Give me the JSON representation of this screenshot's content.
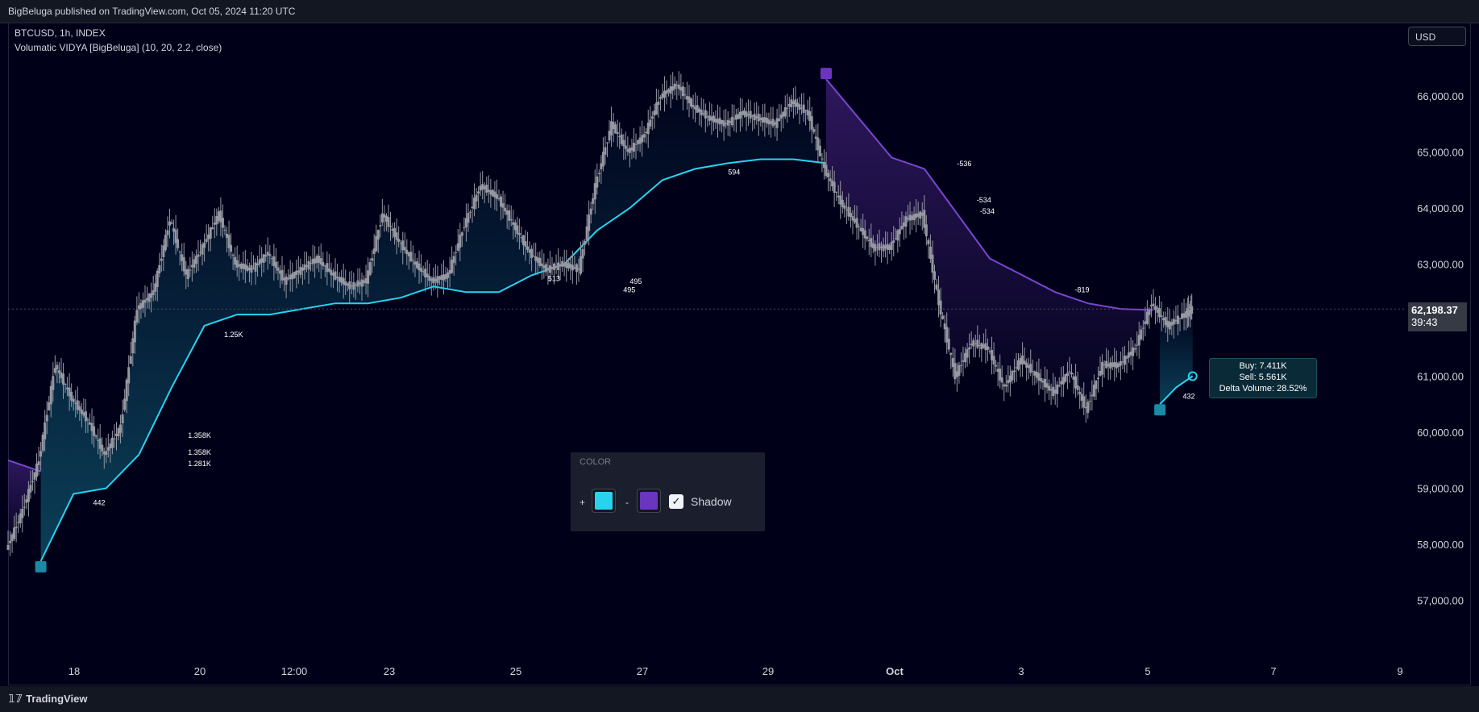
{
  "header": {
    "published": "BigBeluga published on TradingView.com, Oct 05, 2024 11:20 UTC"
  },
  "legend": {
    "symbol": "BTCUSD, 1h, INDEX",
    "indicator": "Volumatic VIDYA [BigBeluga] (10, 20, 2.2, close)"
  },
  "currency_button": "USD",
  "footer": {
    "brand": "TradingView"
  },
  "last_price": {
    "price": "62,198.37",
    "countdown": "39:43"
  },
  "info_box": {
    "buy": "Buy: 7.411K",
    "sell": "Sell: 5.561K",
    "delta": "Delta Volume: 28.52%"
  },
  "color_panel": {
    "title": "COLOR",
    "plus": "+",
    "minus": "-",
    "shadow_label": "Shadow",
    "shadow_checked": true,
    "bull_color": "#28d3f0",
    "bear_color": "#6b35c0",
    "check_glyph": "✓"
  },
  "colors": {
    "background": "#000119",
    "bull": "#28d3f0",
    "bear": "#7a45d0",
    "candle": "#9598a1"
  },
  "chart_data": {
    "type": "line",
    "title": "BTCUSD, 1h, INDEX",
    "x_ticks": [
      "18",
      "20",
      "12:00",
      "23",
      "25",
      "27",
      "29",
      "Oct",
      "3",
      "5",
      "7",
      "9"
    ],
    "y_ticks": [
      "57,000.00",
      "58,000.00",
      "59,000.00",
      "60,000.00",
      "61,000.00",
      "62,000.00",
      "63,000.00",
      "64,000.00",
      "65,000.00",
      "66,000.00"
    ],
    "ylim": [
      56000,
      67300
    ],
    "grid": false,
    "series": [
      {
        "name": "BTCUSD",
        "points": [
          [
            0,
            57900
          ],
          [
            0.5,
            58600
          ],
          [
            1,
            59500
          ],
          [
            1.5,
            61200
          ],
          [
            2,
            60600
          ],
          [
            2.5,
            60200
          ],
          [
            3,
            59600
          ],
          [
            3.5,
            60100
          ],
          [
            4,
            62200
          ],
          [
            4.5,
            62500
          ],
          [
            5,
            63800
          ],
          [
            5.5,
            62800
          ],
          [
            6,
            63300
          ],
          [
            6.5,
            63900
          ],
          [
            7,
            63000
          ],
          [
            7.5,
            62900
          ],
          [
            8,
            63200
          ],
          [
            8.5,
            62700
          ],
          [
            9,
            62900
          ],
          [
            9.5,
            63100
          ],
          [
            10,
            62800
          ],
          [
            10.5,
            62600
          ],
          [
            11,
            62700
          ],
          [
            11.5,
            63900
          ],
          [
            12,
            63400
          ],
          [
            12.5,
            63000
          ],
          [
            13,
            62700
          ],
          [
            13.5,
            62800
          ],
          [
            14,
            63700
          ],
          [
            14.5,
            64400
          ],
          [
            15,
            64200
          ],
          [
            15.5,
            63700
          ],
          [
            16,
            63200
          ],
          [
            16.5,
            62900
          ],
          [
            17,
            63000
          ],
          [
            17.5,
            62900
          ],
          [
            18,
            64400
          ],
          [
            18.5,
            65500
          ],
          [
            19,
            65000
          ],
          [
            19.5,
            65300
          ],
          [
            20,
            66000
          ],
          [
            20.5,
            66200
          ],
          [
            21,
            65800
          ],
          [
            21.5,
            65600
          ],
          [
            22,
            65500
          ],
          [
            22.5,
            65700
          ],
          [
            23,
            65600
          ],
          [
            23.5,
            65500
          ],
          [
            24,
            65900
          ],
          [
            24.5,
            65700
          ],
          [
            25,
            64700
          ],
          [
            25.5,
            64100
          ],
          [
            26,
            63700
          ],
          [
            26.5,
            63300
          ],
          [
            27,
            63300
          ],
          [
            27.5,
            63800
          ],
          [
            28,
            63900
          ],
          [
            28.5,
            62300
          ],
          [
            29,
            61000
          ],
          [
            29.5,
            61600
          ],
          [
            30,
            61500
          ],
          [
            30.5,
            60800
          ],
          [
            31,
            61300
          ],
          [
            31.5,
            61000
          ],
          [
            32,
            60700
          ],
          [
            32.5,
            61100
          ],
          [
            33,
            60400
          ],
          [
            33.5,
            61200
          ],
          [
            34,
            61200
          ],
          [
            34.5,
            61500
          ],
          [
            35,
            62300
          ],
          [
            35.5,
            61900
          ],
          [
            36,
            62100
          ],
          [
            36.2,
            62198
          ]
        ]
      },
      {
        "name": "VIDYA",
        "points": [
          [
            1,
            57700
          ],
          [
            2,
            58900
          ],
          [
            3,
            59000
          ],
          [
            4,
            59600
          ],
          [
            5,
            60800
          ],
          [
            6,
            61900
          ],
          [
            7,
            62100
          ],
          [
            8,
            62100
          ],
          [
            9,
            62200
          ],
          [
            10,
            62300
          ],
          [
            11,
            62300
          ],
          [
            12,
            62400
          ],
          [
            13,
            62600
          ],
          [
            14,
            62500
          ],
          [
            15,
            62500
          ],
          [
            16,
            62800
          ],
          [
            17,
            63000
          ],
          [
            18,
            63600
          ],
          [
            19,
            64000
          ],
          [
            20,
            64500
          ],
          [
            21,
            64700
          ],
          [
            22,
            64800
          ],
          [
            23,
            64870
          ],
          [
            24,
            64870
          ],
          [
            25,
            64800
          ]
        ]
      },
      {
        "name": "VIDYA",
        "points": [
          [
            0,
            59500
          ],
          [
            1,
            59300
          ],
          [
            25,
            66300
          ],
          [
            26,
            65600
          ],
          [
            27,
            64900
          ],
          [
            28,
            64700
          ],
          [
            29,
            63900
          ],
          [
            30,
            63100
          ],
          [
            31,
            62800
          ],
          [
            32,
            62500
          ],
          [
            33,
            62300
          ],
          [
            34,
            62200
          ],
          [
            35,
            62180
          ]
        ]
      },
      {
        "name": "VIDYA",
        "points": [
          [
            35.2,
            60500
          ],
          [
            35.7,
            60800
          ],
          [
            36.2,
            61000
          ]
        ]
      }
    ],
    "annotations": [
      "442",
      "1.358K",
      "1.358K",
      "1.281K",
      "1.25K",
      "513",
      "495",
      "495",
      "594",
      "-536",
      "-534",
      "-534",
      "-819",
      "432"
    ]
  }
}
